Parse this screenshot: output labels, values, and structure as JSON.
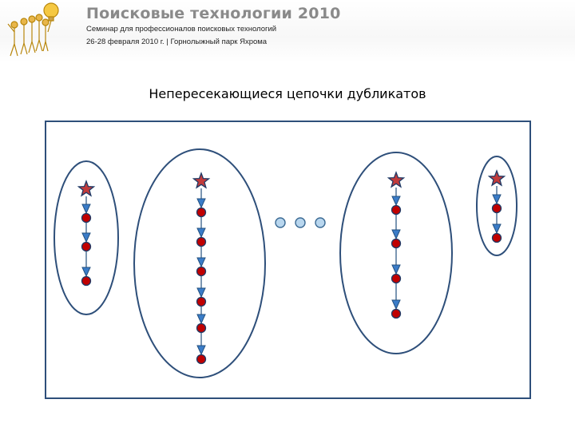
{
  "header": {
    "title": "Поисковые технологии 2010",
    "subtitle": "Семинар для профессионалов поисковых технологий",
    "date_location": "26-28 февраля 2010 г. | Горнолыжный парк Яхрома"
  },
  "slide": {
    "title": "Непересекающиеся цепочки дубликатов"
  },
  "diagram": {
    "chains": [
      {
        "nodes": [
          "star",
          "dot",
          "dot",
          "dot"
        ]
      },
      {
        "nodes": [
          "star",
          "dot",
          "dot",
          "dot",
          "dot",
          "dot",
          "dot"
        ]
      },
      {
        "nodes": [
          "star",
          "dot",
          "dot",
          "dot",
          "dot"
        ]
      },
      {
        "nodes": [
          "star",
          "dot",
          "dot"
        ]
      }
    ],
    "ellipsis_count": 3,
    "colors": {
      "outline": "#2e4f7a",
      "node_fill": "#c00000",
      "node_stroke": "#1f3a66",
      "arrow_fill": "#3a7cc8",
      "arrow_stroke": "#23507f",
      "star_fill": "#c23b3b",
      "star_stroke": "#1f3a66",
      "ellipsis_fill": "#b8d6ee",
      "ellipsis_stroke": "#3b6a94"
    }
  }
}
